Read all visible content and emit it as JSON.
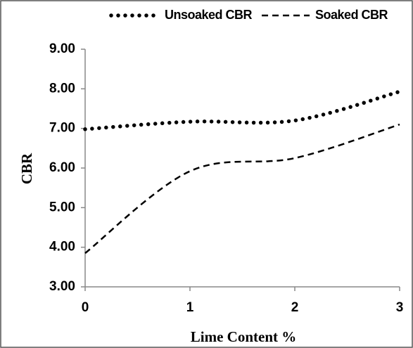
{
  "chart_data": {
    "type": "line",
    "xlabel": "Lime Content %",
    "ylabel": "CBR",
    "x": [
      0,
      1,
      2,
      3
    ],
    "series": [
      {
        "name": "Unsoaked CBR",
        "color": "#000000",
        "style": "dotted",
        "values": [
          6.98,
          7.17,
          7.2,
          7.93
        ]
      },
      {
        "name": "Soaked CBR",
        "color": "#000000",
        "style": "dashed",
        "values": [
          3.85,
          5.92,
          6.25,
          7.1
        ]
      }
    ],
    "smooth": true,
    "xlim": [
      0,
      3
    ],
    "xticks": [
      0,
      1,
      2,
      3
    ],
    "ylim": [
      3,
      9
    ],
    "yticks": [
      {
        "value": 3,
        "label": "3.00"
      },
      {
        "value": 4,
        "label": "4.00"
      },
      {
        "value": 5,
        "label": "5.00"
      },
      {
        "value": 6,
        "label": "6.00"
      },
      {
        "value": 7,
        "label": "7.00"
      },
      {
        "value": 8,
        "label": "8.00"
      },
      {
        "value": 9,
        "label": "9.00"
      }
    ],
    "grid": false,
    "legend": "top"
  }
}
